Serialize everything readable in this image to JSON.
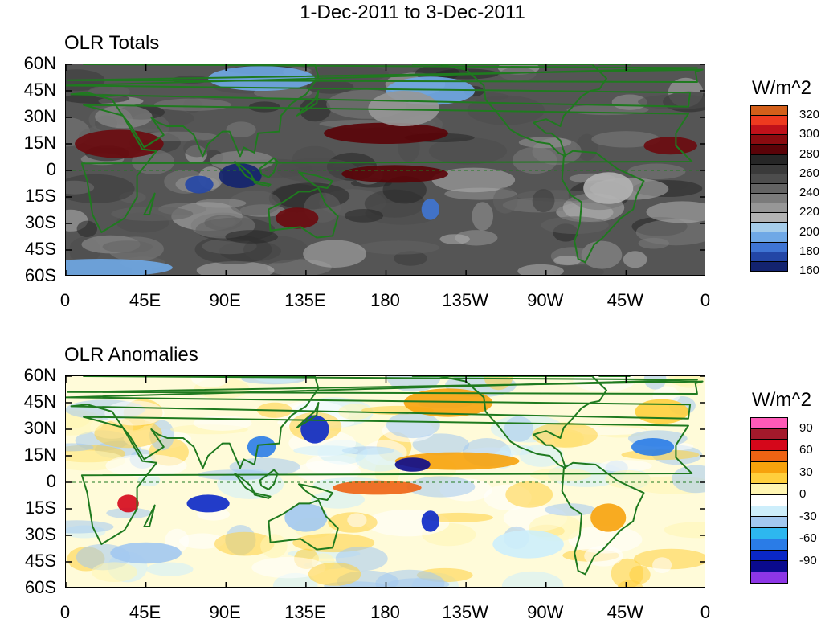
{
  "title": "1-Dec-2011 to 3-Dec-2011",
  "x_ticks": [
    "0",
    "45E",
    "90E",
    "135E",
    "180",
    "135W",
    "90W",
    "45W",
    "0"
  ],
  "y_ticks": [
    "60N",
    "45N",
    "30N",
    "15N",
    "0",
    "15S",
    "30S",
    "45S",
    "60S"
  ],
  "panels": [
    {
      "id": "totals",
      "title": "OLR Totals",
      "unit": "W/m^2",
      "colorbar_colors": [
        "#d35f1a",
        "#ee3a1f",
        "#c0111a",
        "#8a0b10",
        "#5a0308",
        "#262626",
        "#3a3a3a",
        "#4d4d4d",
        "#636363",
        "#7b7b7b",
        "#979797",
        "#b3b3b3",
        "#a6cdea",
        "#6fa8e6",
        "#3f75d4",
        "#2346a6",
        "#13236f"
      ],
      "colorbar_labels": [
        "320",
        "300",
        "280",
        "260",
        "240",
        "220",
        "200",
        "180",
        "160"
      ],
      "bg_color": "#555555",
      "features": [
        {
          "name": "n-africa-high",
          "cx": 30,
          "cy": 15,
          "rx": 25,
          "ry": 8,
          "color": "#6b0a0e"
        },
        {
          "name": "pacific-band-high",
          "cx": 180,
          "cy": 21,
          "rx": 35,
          "ry": 6,
          "color": "#5a0308"
        },
        {
          "name": "equatorial-pacific-high",
          "cx": 185,
          "cy": -2,
          "rx": 30,
          "ry": 5,
          "color": "#5a0308"
        },
        {
          "name": "atlantic-high",
          "cx": -20,
          "cy": 14,
          "rx": 15,
          "ry": 5,
          "color": "#6b0a0e"
        },
        {
          "name": "australia-high",
          "cx": 130,
          "cy": -27,
          "rx": 12,
          "ry": 6,
          "color": "#6b0a0e"
        },
        {
          "name": "maritime-continent-low",
          "cx": 98,
          "cy": -3,
          "rx": 12,
          "ry": 7,
          "color": "#13236f"
        },
        {
          "name": "indian-ocean-low",
          "cx": 75,
          "cy": -8,
          "rx": 8,
          "ry": 5,
          "color": "#2346a6"
        },
        {
          "name": "south-pacific-low",
          "cx": -155,
          "cy": -22,
          "rx": 5,
          "ry": 6,
          "color": "#3f75d4"
        },
        {
          "name": "brazil-low",
          "cx": -55,
          "cy": -10,
          "rx": 14,
          "ry": 9,
          "color": "#b3b3b3"
        },
        {
          "name": "n-pacific-low",
          "cx": -155,
          "cy": 45,
          "rx": 25,
          "ry": 8,
          "color": "#6fa8e6"
        },
        {
          "name": "siberia-low",
          "cx": 110,
          "cy": 52,
          "rx": 30,
          "ry": 7,
          "color": "#6fa8e6"
        },
        {
          "name": "southern-ocean-low",
          "cx": 20,
          "cy": -55,
          "rx": 40,
          "ry": 5,
          "color": "#6fa8e6"
        },
        {
          "name": "mid-lat-gray",
          "cx": -170,
          "cy": 35,
          "rx": 20,
          "ry": 10,
          "color": "#979797"
        }
      ]
    },
    {
      "id": "anomalies",
      "title": "OLR Anomalies",
      "unit": "W/m^2",
      "colorbar_colors": [
        "#ff5ab8",
        "#a3192b",
        "#d5071a",
        "#ee6313",
        "#f7a20c",
        "#ffcf3c",
        "#fff5b2",
        "#ffffff",
        "#cdeefb",
        "#a2c8f0",
        "#2db7ef",
        "#2a7ce7",
        "#0a27c7",
        "#0a0a8d",
        "#8d36e6"
      ],
      "colorbar_labels": [
        "90",
        "60",
        "30",
        "0",
        "-30",
        "-60",
        "-90"
      ],
      "bg_color": "#fffbd9",
      "features": [
        {
          "name": "w-pacific-neg",
          "cx": 140,
          "cy": 30,
          "rx": 8,
          "ry": 8,
          "color": "#0a27c7"
        },
        {
          "name": "tropical-pacific-pos",
          "cx": -140,
          "cy": 12,
          "rx": 35,
          "ry": 5,
          "color": "#f7a20c"
        },
        {
          "name": "eq-pos",
          "cx": 175,
          "cy": -3,
          "rx": 25,
          "ry": 4,
          "color": "#ee6313"
        },
        {
          "name": "indian-ocean-neg",
          "cx": 80,
          "cy": -12,
          "rx": 12,
          "ry": 5,
          "color": "#0a27c7"
        },
        {
          "name": "south-pacific-neg",
          "cx": -155,
          "cy": -22,
          "rx": 5,
          "ry": 6,
          "color": "#0a27c7"
        },
        {
          "name": "africa-pos",
          "cx": 35,
          "cy": -12,
          "rx": 6,
          "ry": 5,
          "color": "#d5071a"
        },
        {
          "name": "s-america-pos",
          "cx": -55,
          "cy": -20,
          "rx": 10,
          "ry": 8,
          "color": "#f7a20c"
        },
        {
          "name": "n-pacific-pos",
          "cx": -145,
          "cy": 45,
          "rx": 25,
          "ry": 8,
          "color": "#f7a20c"
        },
        {
          "name": "china-neg",
          "cx": 110,
          "cy": 20,
          "rx": 8,
          "ry": 6,
          "color": "#2a7ce7"
        },
        {
          "name": "atlantic-neg",
          "cx": -30,
          "cy": 20,
          "rx": 12,
          "ry": 5,
          "color": "#2a7ce7"
        },
        {
          "name": "mid-pacific-neg",
          "cx": -165,
          "cy": 10,
          "rx": 10,
          "ry": 4,
          "color": "#0a0a8d"
        },
        {
          "name": "n-atlantic-pos",
          "cx": -25,
          "cy": 40,
          "rx": 15,
          "ry": 7,
          "color": "#ffcf3c"
        },
        {
          "name": "australia-neg",
          "cx": 135,
          "cy": -20,
          "rx": 12,
          "ry": 8,
          "color": "#a2c8f0"
        },
        {
          "name": "s-indian-neg",
          "cx": 45,
          "cy": -40,
          "rx": 20,
          "ry": 6,
          "color": "#a2c8f0"
        },
        {
          "name": "s-pacific-neg",
          "cx": -100,
          "cy": -35,
          "rx": 20,
          "ry": 8,
          "color": "#cdeefb"
        }
      ]
    }
  ]
}
